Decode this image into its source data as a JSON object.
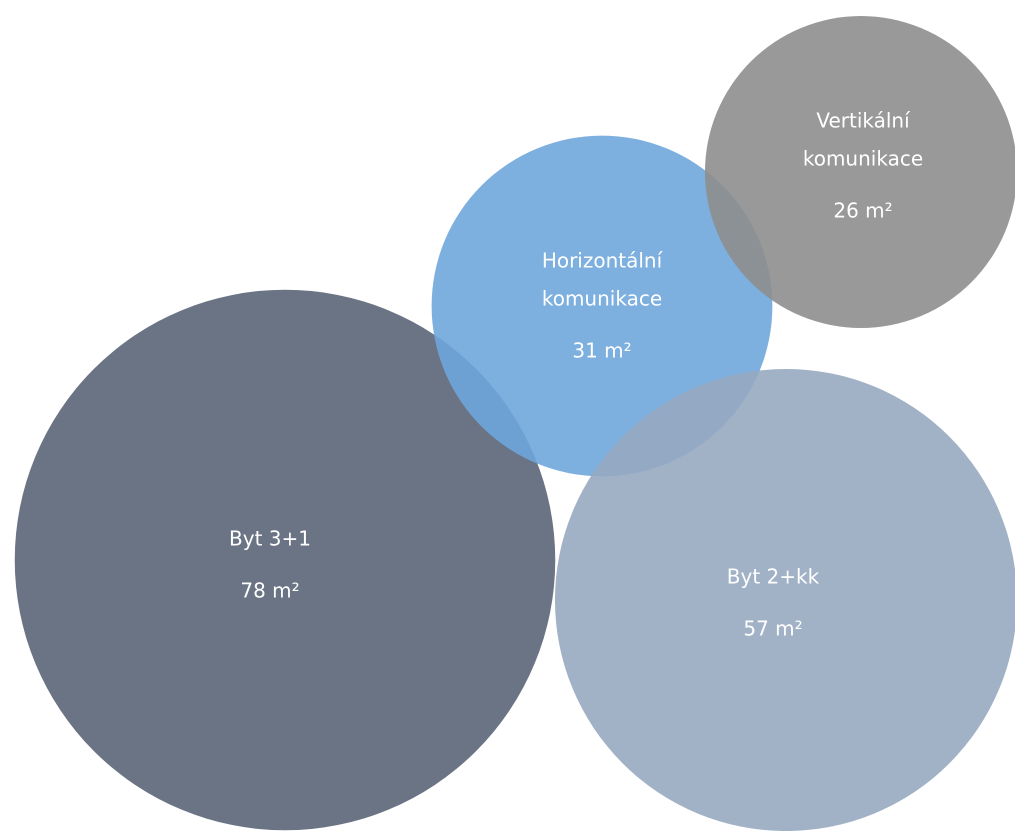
{
  "chart_data": {
    "type": "bubble",
    "categories": [
      [
        "Byt 3+1"
      ],
      [
        "Horizontální",
        "komunikace"
      ],
      [
        "Vertikální",
        "komunikace"
      ],
      [
        "Byt 2+kk"
      ]
    ],
    "values": [
      78,
      31,
      26,
      57
    ],
    "value_labels": [
      "78 m²",
      "31 m²",
      "26 m²",
      "57 m²"
    ],
    "colors": [
      "#5b6577",
      "#6fa6dc",
      "#8e8e8e",
      "#97a9c0"
    ]
  }
}
